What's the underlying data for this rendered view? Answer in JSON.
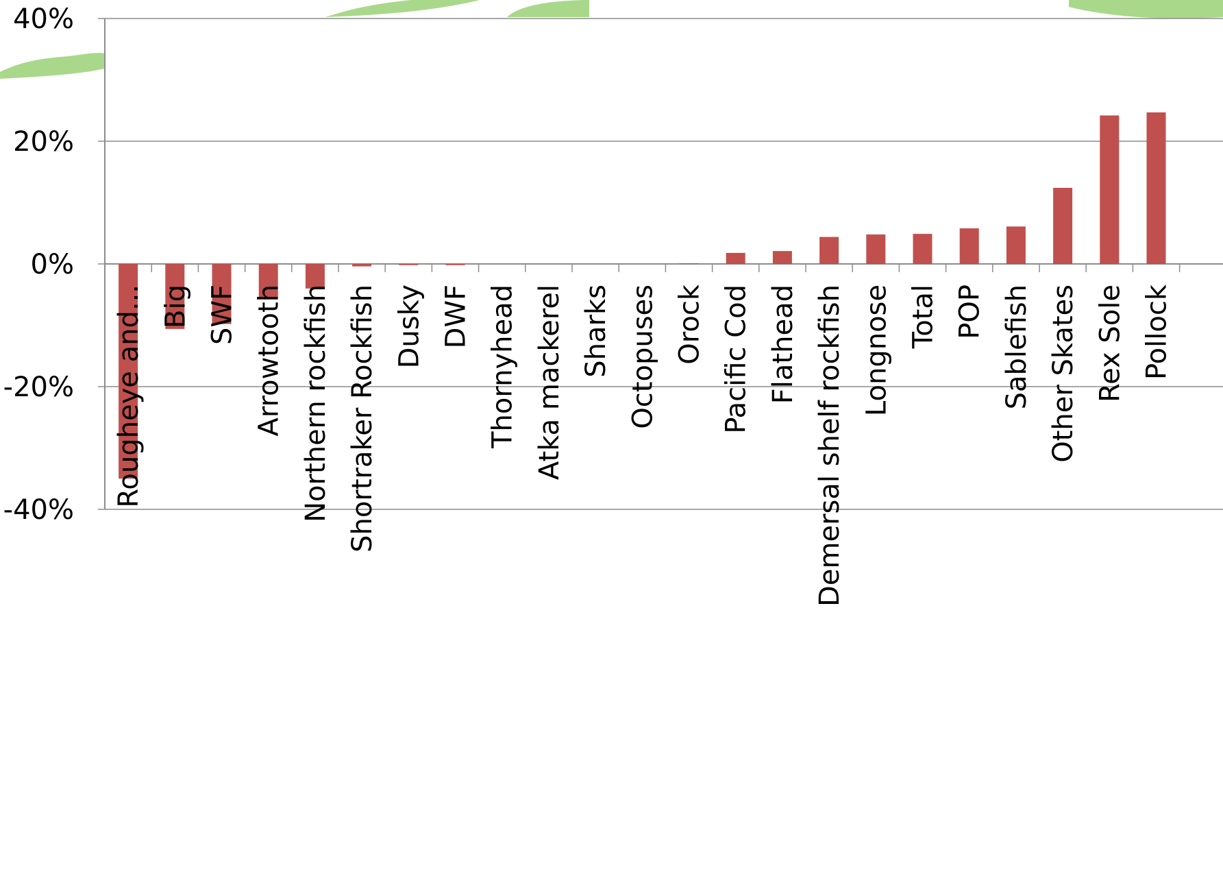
{
  "chart_data": {
    "type": "bar",
    "title": "",
    "xlabel": "",
    "ylabel": "",
    "ylim": [
      -40,
      40
    ],
    "y_ticks": [
      40,
      20,
      0,
      -20,
      -40
    ],
    "y_tick_labels": [
      "40%",
      "20%",
      "0%",
      "-20%",
      "-40%"
    ],
    "grid": true,
    "bar_color": "#c0504d",
    "categories": [
      "Rougheye and...",
      "Big",
      "SWF",
      "Arrowtooth",
      "Northern rockfish",
      "Shortraker Rockfish",
      "Dusky",
      "DWF",
      "Thornyhead",
      "Atka mackerel",
      "Sharks",
      "Octopuses",
      "Orock",
      "Pacific Cod",
      "Flathead",
      "Demersal shelf rockfish",
      "Longnose",
      "Total",
      "POP",
      "Sablefish",
      "Other Skates",
      "Rex Sole",
      "Pollock"
    ],
    "values": [
      -35.0,
      -10.6,
      -9.8,
      -5.7,
      -4.0,
      -0.4,
      -0.2,
      -0.2,
      0.0,
      0.0,
      0.0,
      0.0,
      0.1,
      1.8,
      2.1,
      4.4,
      4.8,
      4.9,
      5.8,
      6.1,
      12.4,
      24.2,
      24.7
    ]
  }
}
